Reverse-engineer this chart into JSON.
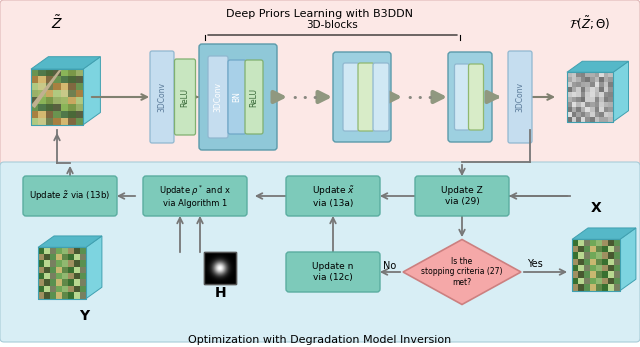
{
  "title_top": "Deep Priors Learning with B3DDN",
  "title_bottom": "Optimization with Degradation Model Inversion",
  "bg_top": "#fce8e6",
  "bg_bottom": "#d8eef5",
  "box_color": "#7dcaba",
  "box_edge": "#5aada0",
  "arrow_color": "#808080",
  "diamond_color": "#f5a8a8",
  "diamond_edge": "#cc8080",
  "label_z_tilde": "$\\tilde{Z}$",
  "label_f_z": "$\\mathcal{F}(\\tilde{Z};\\Theta)$",
  "label_x": "$\\mathbf{X}$",
  "label_y": "$\\mathbf{Y}$",
  "label_h": "$\\mathbf{H}$",
  "label_3d_blocks": "3D-blocks",
  "text_13b": "Update $\\tilde{z}$ via (13b)",
  "text_alg1": "Update $\\rho^*$ and x\nvia Algorithm 1",
  "text_13a": "Update $\\tilde{x}$\nvia (13a)",
  "text_29": "Update Z\nvia (29)",
  "text_12c": "Update n\nvia (12c)",
  "text_diamond": "Is the\nstopping criteria (27)\nmet?",
  "text_no": "No",
  "text_yes": "Yes",
  "text_relu": "ReLU",
  "text_bn": "BN",
  "text_3dconv": "3DConv",
  "blue_layer": "#c5ddef",
  "green_layer": "#c8e6c0",
  "dark_teal_block": "#7eb8c8",
  "teal_text": "#ffffff",
  "layer_text_blue": "#5a7a99",
  "layer_text_green": "#3a6a3a"
}
